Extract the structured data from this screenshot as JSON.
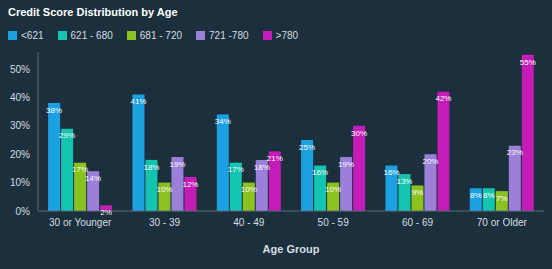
{
  "chart_data": {
    "type": "bar",
    "title": "Credit Score Distribution by Age",
    "x_label": "Age Group",
    "categories": [
      "30 or Younger",
      "30 - 39",
      "40 - 49",
      "50 - 59",
      "60 - 69",
      "70 or Older"
    ],
    "series": [
      {
        "name": "<621",
        "color": "#1ba1e2",
        "values": [
          38,
          41,
          34,
          25,
          16,
          8
        ],
        "value_labels": [
          "38%",
          "41%",
          "34%",
          "25%",
          "16%",
          "8%"
        ]
      },
      {
        "name": "621 - 680",
        "color": "#13c4b0",
        "values": [
          29,
          18,
          17,
          16,
          13,
          8
        ],
        "value_labels": [
          "29%",
          "18%",
          "17%",
          "16%",
          "13%",
          "8%"
        ]
      },
      {
        "name": "681 - 720",
        "color": "#8cc21f",
        "values": [
          17,
          10,
          10,
          10,
          9,
          7
        ],
        "value_labels": [
          "17%",
          "10%",
          "10%",
          "10%",
          "9%",
          "7%"
        ]
      },
      {
        "name": "721 -780",
        "color": "#9a80d8",
        "values": [
          14,
          19,
          18,
          19,
          20,
          23
        ],
        "value_labels": [
          "14%",
          "19%",
          "18%",
          "19%",
          "20%",
          "23%"
        ]
      },
      {
        "name": ">780",
        "color": "#c41cb6",
        "values": [
          2,
          12,
          21,
          30,
          42,
          55
        ],
        "value_labels": [
          "2%",
          "12%",
          "21%",
          "30%",
          "42%",
          "55%"
        ]
      }
    ],
    "ylim": [
      0,
      56
    ],
    "yticks": [
      {
        "value": 0,
        "label": "0%"
      },
      {
        "value": 10,
        "label": "10%"
      },
      {
        "value": 20,
        "label": "20%"
      },
      {
        "value": 30,
        "label": "30%"
      },
      {
        "value": 40,
        "label": "40%"
      },
      {
        "value": 50,
        "label": "50%"
      }
    ],
    "grid": false,
    "data_labels": true,
    "legend": "top"
  }
}
